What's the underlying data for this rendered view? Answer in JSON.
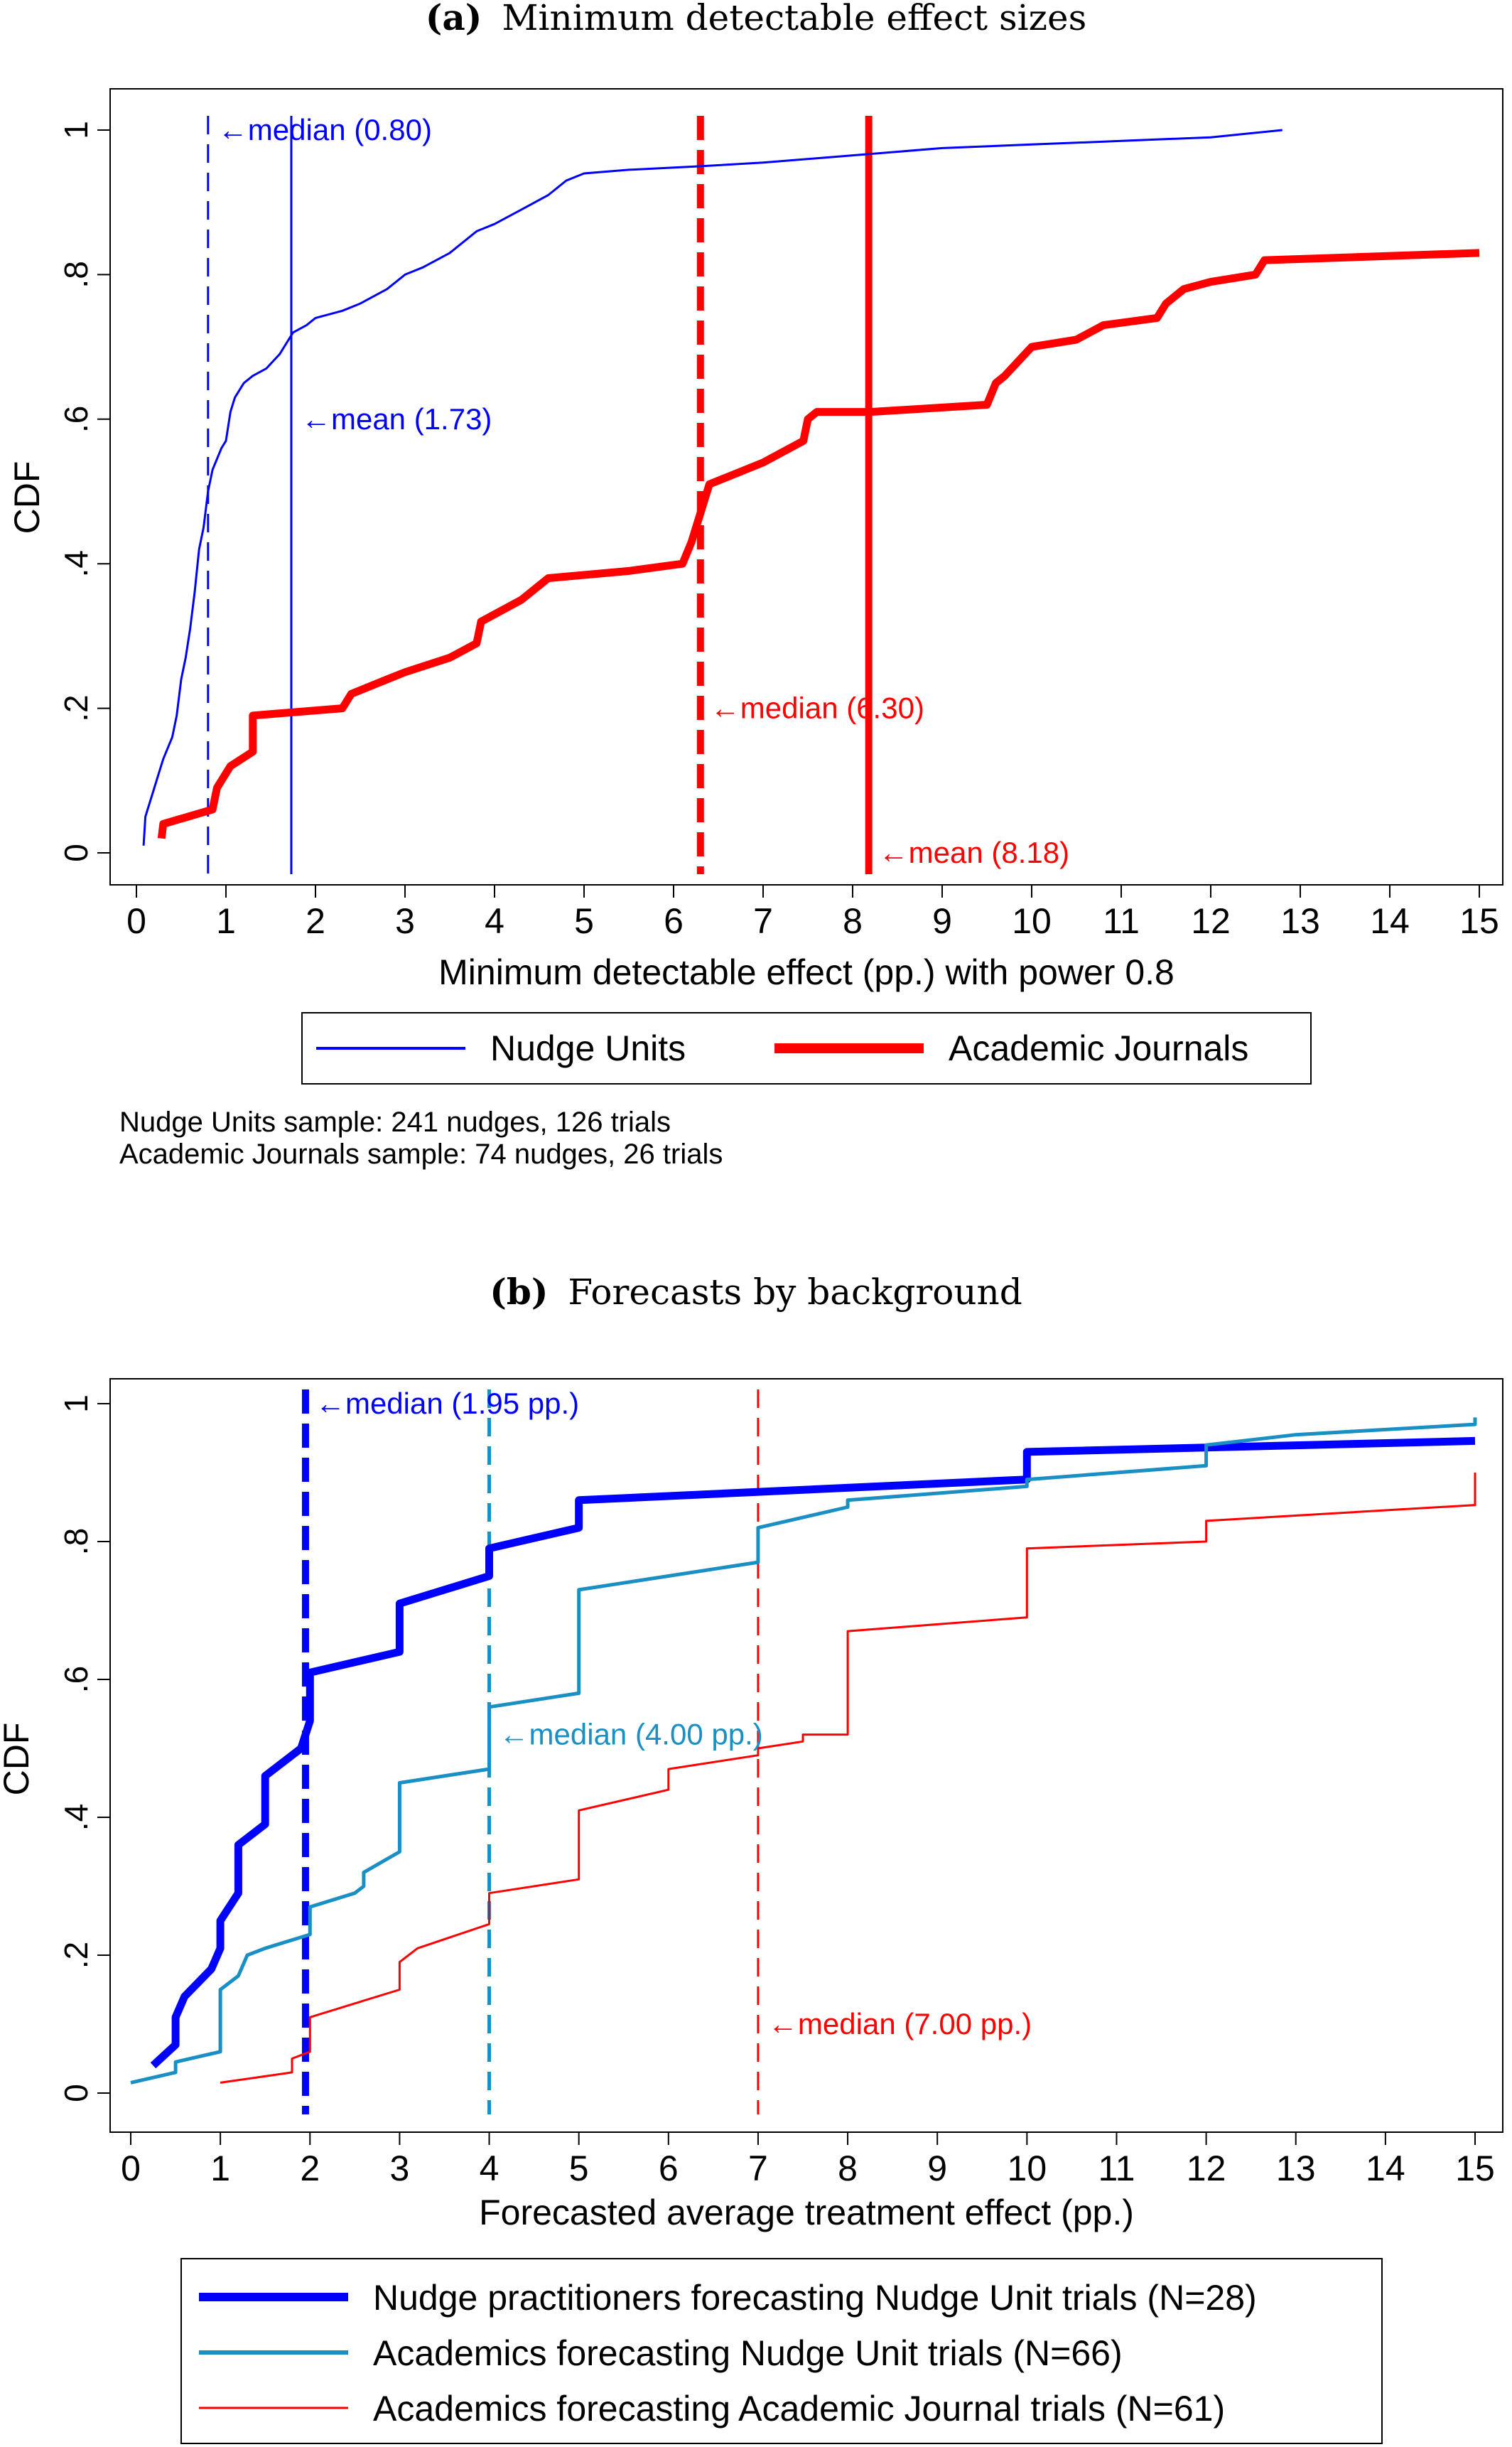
{
  "colors": {
    "nudge": "#0000ff",
    "academic": "#ff0000",
    "teal": "#1a8fc4",
    "red": "#ff0000",
    "blue": "#0000ff"
  },
  "panel_a": {
    "caption_label": "(a)",
    "caption_text": "Minimum detectable effect sizes",
    "legend": {
      "nudge": "Nudge Units",
      "academic": "Academic Journals"
    },
    "notes": [
      "Nudge Units sample: 241 nudges, 126 trials",
      "Academic Journals sample: 74 nudges, 26 trials"
    ]
  },
  "panel_b": {
    "caption_label": "(b)",
    "caption_text": "Forecasts by background"
  },
  "chart_data": [
    {
      "type": "line",
      "subtype": "step-cdf",
      "xlabel": "Minimum detectable effect (pp.) with power 0.8",
      "ylabel": "CDF",
      "xlim": [
        0,
        15
      ],
      "ylim": [
        0,
        1
      ],
      "xticks": [
        "0",
        "1",
        "2",
        "3",
        "4",
        "5",
        "6",
        "7",
        "8",
        "9",
        "10",
        "11",
        "12",
        "13",
        "14",
        "15"
      ],
      "yticks": [
        "0",
        ".2",
        ".4",
        ".6",
        ".8",
        "1"
      ],
      "legend_position": "bottom",
      "series": [
        {
          "name": "Nudge Units",
          "color": "#0000ff",
          "width": "thin",
          "points": [
            [
              0.08,
              0.01
            ],
            [
              0.1,
              0.05
            ],
            [
              0.15,
              0.07
            ],
            [
              0.2,
              0.09
            ],
            [
              0.25,
              0.11
            ],
            [
              0.3,
              0.13
            ],
            [
              0.4,
              0.16
            ],
            [
              0.45,
              0.19
            ],
            [
              0.5,
              0.24
            ],
            [
              0.55,
              0.27
            ],
            [
              0.6,
              0.31
            ],
            [
              0.65,
              0.36
            ],
            [
              0.7,
              0.42
            ],
            [
              0.75,
              0.45
            ],
            [
              0.8,
              0.5
            ],
            [
              0.85,
              0.53
            ],
            [
              0.95,
              0.56
            ],
            [
              1.0,
              0.57
            ],
            [
              1.05,
              0.61
            ],
            [
              1.1,
              0.63
            ],
            [
              1.2,
              0.65
            ],
            [
              1.3,
              0.66
            ],
            [
              1.45,
              0.67
            ],
            [
              1.6,
              0.69
            ],
            [
              1.7,
              0.71
            ],
            [
              1.75,
              0.72
            ],
            [
              1.9,
              0.73
            ],
            [
              2.0,
              0.74
            ],
            [
              2.3,
              0.75
            ],
            [
              2.5,
              0.76
            ],
            [
              2.8,
              0.78
            ],
            [
              3.0,
              0.8
            ],
            [
              3.2,
              0.81
            ],
            [
              3.5,
              0.83
            ],
            [
              3.8,
              0.86
            ],
            [
              4.0,
              0.87
            ],
            [
              4.3,
              0.89
            ],
            [
              4.6,
              0.91
            ],
            [
              4.8,
              0.93
            ],
            [
              5.0,
              0.94
            ],
            [
              5.5,
              0.945
            ],
            [
              6.3,
              0.95
            ],
            [
              7.0,
              0.955
            ],
            [
              8.0,
              0.965
            ],
            [
              9.0,
              0.975
            ],
            [
              10.0,
              0.98
            ],
            [
              11.0,
              0.985
            ],
            [
              12.0,
              0.99
            ],
            [
              12.8,
              1.0
            ]
          ]
        },
        {
          "name": "Academic Journals",
          "color": "#ff0000",
          "width": "thick",
          "points": [
            [
              0.28,
              0.02
            ],
            [
              0.3,
              0.04
            ],
            [
              0.85,
              0.06
            ],
            [
              0.9,
              0.09
            ],
            [
              1.0,
              0.11
            ],
            [
              1.05,
              0.12
            ],
            [
              1.3,
              0.14
            ],
            [
              1.3,
              0.19
            ],
            [
              2.3,
              0.2
            ],
            [
              2.4,
              0.22
            ],
            [
              2.8,
              0.24
            ],
            [
              3.0,
              0.25
            ],
            [
              3.5,
              0.27
            ],
            [
              3.8,
              0.29
            ],
            [
              3.85,
              0.32
            ],
            [
              4.0,
              0.33
            ],
            [
              4.3,
              0.35
            ],
            [
              4.5,
              0.37
            ],
            [
              4.6,
              0.38
            ],
            [
              5.5,
              0.39
            ],
            [
              6.1,
              0.4
            ],
            [
              6.2,
              0.43
            ],
            [
              6.3,
              0.47
            ],
            [
              6.4,
              0.51
            ],
            [
              6.6,
              0.52
            ],
            [
              7.0,
              0.54
            ],
            [
              7.3,
              0.56
            ],
            [
              7.45,
              0.57
            ],
            [
              7.5,
              0.6
            ],
            [
              7.6,
              0.61
            ],
            [
              8.2,
              0.61
            ],
            [
              9.5,
              0.62
            ],
            [
              9.6,
              0.65
            ],
            [
              9.7,
              0.66
            ],
            [
              9.85,
              0.68
            ],
            [
              10.0,
              0.7
            ],
            [
              10.5,
              0.71
            ],
            [
              10.8,
              0.73
            ],
            [
              11.4,
              0.74
            ],
            [
              11.5,
              0.76
            ],
            [
              11.7,
              0.78
            ],
            [
              12.0,
              0.79
            ],
            [
              12.5,
              0.8
            ],
            [
              12.6,
              0.82
            ],
            [
              15.0,
              0.83
            ]
          ]
        }
      ],
      "reference_lines": [
        {
          "x": 0.8,
          "color": "#0000ff",
          "style": "dashed",
          "width": "thin",
          "label": "←median (0.80)",
          "label_y": 1.0
        },
        {
          "x": 1.73,
          "color": "#0000ff",
          "style": "solid",
          "width": "thin",
          "label": "←mean (1.73)",
          "label_y": 0.6
        },
        {
          "x": 6.3,
          "color": "#ff0000",
          "style": "dashed",
          "width": "thick",
          "label": "←median (6.30)",
          "label_y": 0.2
        },
        {
          "x": 8.18,
          "color": "#ff0000",
          "style": "solid",
          "width": "thick",
          "label": "←mean (8.18)",
          "label_y": 0.0
        }
      ]
    },
    {
      "type": "line",
      "subtype": "step-cdf",
      "xlabel": "Forecasted average treatment effect (pp.)",
      "ylabel": "CDF",
      "xlim": [
        0,
        15
      ],
      "ylim": [
        0,
        1
      ],
      "xticks": [
        "0",
        "1",
        "2",
        "3",
        "4",
        "5",
        "6",
        "7",
        "8",
        "9",
        "10",
        "11",
        "12",
        "13",
        "14",
        "15"
      ],
      "yticks": [
        "0",
        ".2",
        ".4",
        ".6",
        ".8",
        "1"
      ],
      "legend_position": "bottom",
      "series": [
        {
          "name": "Nudge practitioners forecasting Nudge Unit trials (N=28)",
          "color": "#0000ff",
          "width": "thick",
          "points": [
            [
              0.25,
              0.04
            ],
            [
              0.5,
              0.07
            ],
            [
              0.5,
              0.11
            ],
            [
              0.6,
              0.14
            ],
            [
              0.9,
              0.18
            ],
            [
              1.0,
              0.21
            ],
            [
              1.0,
              0.25
            ],
            [
              1.2,
              0.29
            ],
            [
              1.2,
              0.36
            ],
            [
              1.5,
              0.39
            ],
            [
              1.5,
              0.46
            ],
            [
              1.9,
              0.5
            ],
            [
              2.0,
              0.54
            ],
            [
              2.0,
              0.61
            ],
            [
              3.0,
              0.64
            ],
            [
              3.0,
              0.71
            ],
            [
              4.0,
              0.75
            ],
            [
              4.0,
              0.79
            ],
            [
              5.0,
              0.82
            ],
            [
              5.0,
              0.86
            ],
            [
              10.0,
              0.89
            ],
            [
              10.0,
              0.93
            ],
            [
              15.0,
              0.946
            ]
          ]
        },
        {
          "name": "Academics forecasting Nudge Unit trials (N=66)",
          "color": "#1a8fc4",
          "width": "medium",
          "points": [
            [
              0.0,
              0.015
            ],
            [
              0.5,
              0.03
            ],
            [
              0.5,
              0.045
            ],
            [
              1.0,
              0.06
            ],
            [
              1.0,
              0.15
            ],
            [
              1.2,
              0.17
            ],
            [
              1.3,
              0.2
            ],
            [
              1.5,
              0.21
            ],
            [
              2.0,
              0.23
            ],
            [
              2.0,
              0.27
            ],
            [
              2.5,
              0.29
            ],
            [
              2.6,
              0.3
            ],
            [
              2.6,
              0.32
            ],
            [
              3.0,
              0.35
            ],
            [
              3.0,
              0.45
            ],
            [
              4.0,
              0.47
            ],
            [
              4.0,
              0.56
            ],
            [
              5.0,
              0.58
            ],
            [
              5.0,
              0.73
            ],
            [
              5.5,
              0.74
            ],
            [
              6.0,
              0.75
            ],
            [
              7.0,
              0.77
            ],
            [
              7.0,
              0.82
            ],
            [
              8.0,
              0.85
            ],
            [
              8.0,
              0.86
            ],
            [
              10.0,
              0.88
            ],
            [
              10.0,
              0.89
            ],
            [
              12.0,
              0.91
            ],
            [
              12.0,
              0.94
            ],
            [
              13.0,
              0.955
            ],
            [
              15.0,
              0.97
            ],
            [
              15.0,
              0.98
            ]
          ]
        },
        {
          "name": "Academics forecasting Academic Journal trials (N=61)",
          "color": "#ff0000",
          "width": "thin",
          "points": [
            [
              1.0,
              0.015
            ],
            [
              1.8,
              0.03
            ],
            [
              1.8,
              0.05
            ],
            [
              2.0,
              0.06
            ],
            [
              2.0,
              0.11
            ],
            [
              3.0,
              0.15
            ],
            [
              3.0,
              0.19
            ],
            [
              3.2,
              0.21
            ],
            [
              4.0,
              0.245
            ],
            [
              4.0,
              0.29
            ],
            [
              5.0,
              0.31
            ],
            [
              5.0,
              0.41
            ],
            [
              6.0,
              0.44
            ],
            [
              6.0,
              0.47
            ],
            [
              7.0,
              0.49
            ],
            [
              7.0,
              0.5
            ],
            [
              7.5,
              0.51
            ],
            [
              7.5,
              0.52
            ],
            [
              8.0,
              0.52
            ],
            [
              8.0,
              0.67
            ],
            [
              10.0,
              0.69
            ],
            [
              10.0,
              0.79
            ],
            [
              12.0,
              0.8
            ],
            [
              12.0,
              0.83
            ],
            [
              15.0,
              0.853
            ],
            [
              15.0,
              0.9
            ]
          ]
        }
      ],
      "reference_lines": [
        {
          "x": 1.95,
          "color": "#0000ff",
          "style": "dashed",
          "width": "thick",
          "label": "←median (1.95 pp.)",
          "label_y": 1.0
        },
        {
          "x": 4.0,
          "color": "#1a8fc4",
          "style": "dashed",
          "width": "medium",
          "label": "←median (4.00 pp.)",
          "label_y": 0.52
        },
        {
          "x": 7.0,
          "color": "#ff0000",
          "style": "dashed",
          "width": "thin",
          "label": "←median (7.00 pp.)",
          "label_y": 0.1
        }
      ]
    }
  ]
}
